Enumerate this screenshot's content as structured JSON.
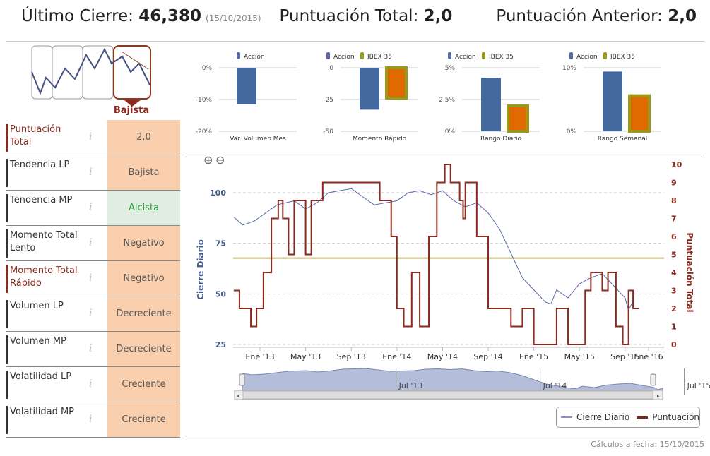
{
  "header": {
    "last_close_label": "Último Cierre:",
    "last_close_value": "46,380",
    "last_close_date": "(15/10/2015)",
    "total_label": "Puntuación Total:",
    "total_value": "2,0",
    "prev_label": "Puntuación Anterior:",
    "prev_value": "2,0"
  },
  "trend_selector": {
    "selected_label": "Bajista"
  },
  "indicators": [
    {
      "label": "Puntuación Total",
      "value": "2,0",
      "accent": "red",
      "state": "neg"
    },
    {
      "label": "Tendencia LP",
      "value": "Bajista",
      "accent": "dark",
      "state": "neg"
    },
    {
      "label": "Tendencia MP",
      "value": "Alcista",
      "accent": "dark",
      "state": "pos"
    },
    {
      "label": "Momento Total Lento",
      "value": "Negativo",
      "accent": "dark",
      "state": "neg"
    },
    {
      "label": "Momento Total Rápido",
      "value": "Negativo",
      "accent": "red",
      "state": "neg"
    },
    {
      "label": "Volumen LP",
      "value": "Decreciente",
      "accent": "dark",
      "state": "neg"
    },
    {
      "label": "Volumen MP",
      "value": "Decreciente",
      "accent": "dark",
      "state": "neg"
    },
    {
      "label": "Volatilidad LP",
      "value": "Creciente",
      "accent": "dark",
      "state": "neg"
    },
    {
      "label": "Volatilidad MP",
      "value": "Creciente",
      "accent": "dark",
      "state": "neg"
    }
  ],
  "info_glyph": "i",
  "colors": {
    "accion": "#44699f",
    "ibex": "#9a9a1a",
    "ibex_fill": "#e06a00",
    "cierre": "#5a6aa8",
    "puntuacion": "#8b2a1e",
    "threshold": "#c8b878"
  },
  "chart_data": [
    {
      "type": "bar",
      "title": "Var. Volumen Mes",
      "legend": [
        "Accion"
      ],
      "ticks": [
        "0%",
        "-10%",
        "-20%"
      ],
      "ylim": [
        -20,
        0
      ],
      "series": [
        {
          "name": "Accion",
          "values": [
            -11.5
          ]
        }
      ]
    },
    {
      "type": "bar",
      "title": "Momento Rápido",
      "legend": [
        "Accion",
        "IBEX 35"
      ],
      "ticks": [
        "0",
        "-25",
        "-50"
      ],
      "ylim": [
        -50,
        0
      ],
      "series": [
        {
          "name": "Accion",
          "values": [
            -33
          ]
        },
        {
          "name": "IBEX 35",
          "values": [
            -24
          ]
        }
      ]
    },
    {
      "type": "bar",
      "title": "Rango Diario",
      "legend": [
        "Accion",
        "IBEX 35"
      ],
      "ticks": [
        "5%",
        "2.5%",
        "0%"
      ],
      "ylim": [
        0,
        5
      ],
      "series": [
        {
          "name": "Accion",
          "values": [
            4.2
          ]
        },
        {
          "name": "IBEX 35",
          "values": [
            2.0
          ]
        }
      ]
    },
    {
      "type": "bar",
      "title": "Rango Semanal",
      "legend": [
        "Accion",
        "IBEX 35"
      ],
      "ticks": [
        "10%",
        "0%"
      ],
      "ylim": [
        0,
        10
      ],
      "series": [
        {
          "name": "Accion",
          "values": [
            9.4
          ]
        },
        {
          "name": "IBEX 35",
          "values": [
            5.6
          ]
        }
      ]
    },
    {
      "type": "line",
      "ylabel": "Cierre Diario",
      "y2label": "Puntuación Total",
      "x_ticks": [
        "Ene '13",
        "May '13",
        "Sep '13",
        "Ene '14",
        "May '14",
        "Sep '14",
        "Ene '15",
        "May '15",
        "Sep '15",
        "Ene '16"
      ],
      "y_ticks": [
        "100",
        "75",
        "50",
        "25"
      ],
      "y2_ticks": [
        "10",
        "9",
        "8",
        "7",
        "6",
        "5",
        "4",
        "3",
        "2",
        "1",
        "0"
      ],
      "ylim": [
        25,
        100
      ],
      "y2lim": [
        0,
        10
      ],
      "threshold": 4.8,
      "series": [
        {
          "name": "Cierre Diario",
          "x_months_from_jan13": [
            -2.3,
            -1.5,
            -0.5,
            0.5,
            1.5,
            3,
            4,
            5,
            6,
            8,
            9,
            10,
            12,
            13,
            14,
            15,
            16,
            17,
            18,
            19,
            20,
            21,
            22,
            23,
            24,
            25,
            25.5,
            26,
            27,
            28,
            29,
            30,
            31,
            32,
            32.3,
            32.7
          ],
          "values": [
            88,
            84,
            86,
            90,
            94,
            96,
            92,
            95,
            100,
            102,
            98,
            94,
            96,
            100,
            101,
            99,
            101,
            96,
            93,
            95,
            90,
            82,
            70,
            58,
            52,
            46,
            45,
            52,
            48,
            55,
            58,
            60,
            54,
            48,
            42,
            46.4
          ]
        },
        {
          "name": "Puntuación",
          "x_months_from_jan13": [
            -2.3,
            -1.8,
            -0.8,
            -0.3,
            0.3,
            1,
            1.6,
            2,
            2.5,
            3,
            4,
            4.5,
            5.5,
            10.5,
            11.5,
            12,
            12.6,
            13.3,
            14,
            14.8,
            15.5,
            16.2,
            16.7,
            17.5,
            17.8,
            18,
            19,
            20,
            22,
            23,
            24,
            26,
            27,
            28.5,
            29,
            30,
            30.5,
            31.2,
            31.8,
            32.3,
            32.7,
            33.2
          ],
          "values": [
            3,
            2,
            1,
            2,
            4,
            7,
            8,
            7,
            5,
            8,
            5,
            8,
            9,
            8,
            6,
            2,
            1,
            4,
            1,
            6,
            9,
            10,
            9,
            8,
            7,
            9,
            6,
            2,
            1,
            2,
            0,
            2,
            0,
            3,
            4,
            3,
            4,
            1,
            0,
            3,
            2,
            2
          ]
        }
      ],
      "navigator_ticks": [
        "Jul '13",
        "Jul '14",
        "Jul '15"
      ]
    }
  ],
  "legend": {
    "cierre": "Cierre Diario",
    "puntuacion": "Puntuación"
  },
  "footer": "Cálculos a fecha: 15/10/2015"
}
